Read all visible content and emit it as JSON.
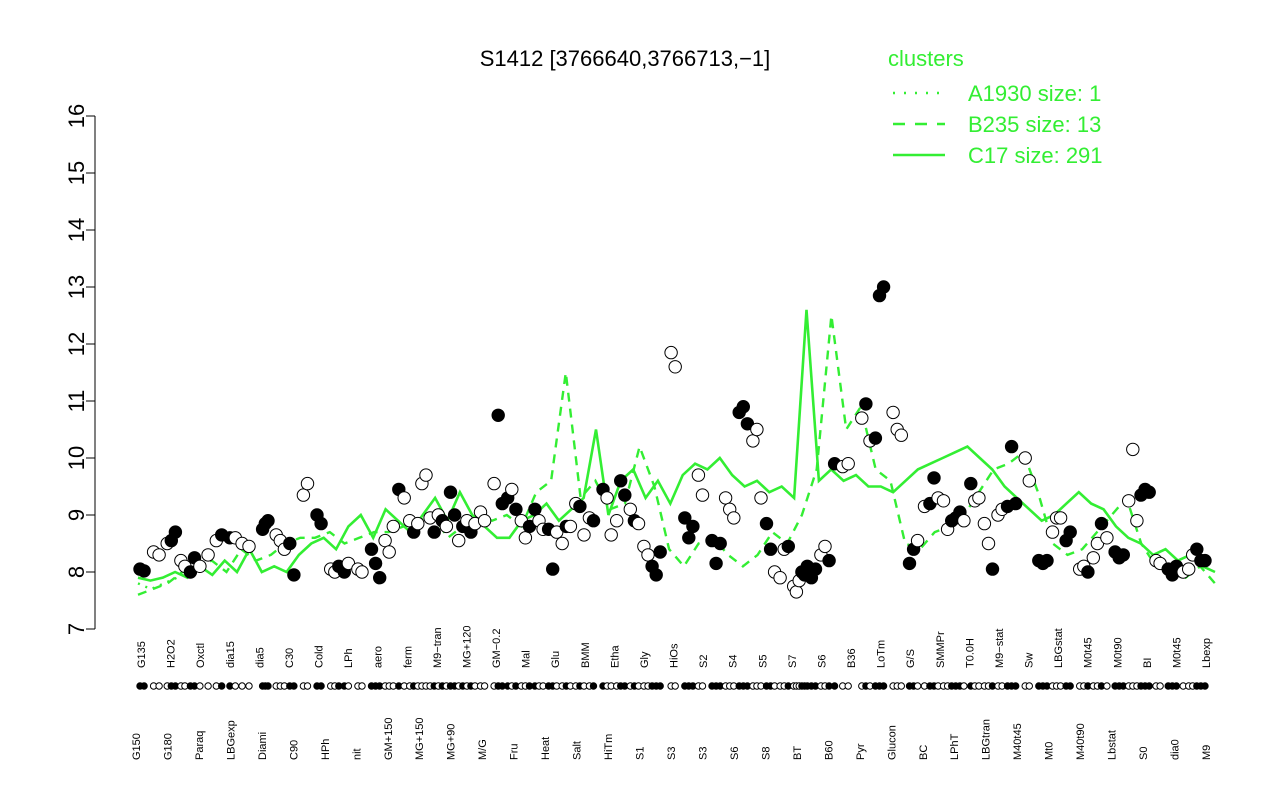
{
  "chart_data": {
    "type": "scatter",
    "title": "S1412 [3766640,3766713,−1]",
    "xlabel": "",
    "ylabel": "",
    "ylim": [
      7,
      16
    ],
    "yticks": [
      7,
      8,
      9,
      10,
      11,
      12,
      13,
      14,
      15,
      16
    ],
    "colors": {
      "series": "#33ee33",
      "points_fill_open": "#ffffff",
      "points_fill_solid": "#000000",
      "axis": "#000000"
    },
    "legend": {
      "title": "clusters",
      "placement": "top-right",
      "entries": [
        {
          "label": "A1930 size: 1",
          "style": "dotted"
        },
        {
          "label": "B235 size: 13",
          "style": "dashed"
        },
        {
          "label": "C17 size: 291",
          "style": "solid"
        }
      ]
    },
    "x_labels_upper": [
      "G135",
      "H2O2",
      "Oxctl",
      "dia15",
      "dia5",
      "C30",
      "Cold",
      "LPh",
      "aero",
      "ferm",
      "M9−tran",
      "MG+120",
      "GM−0.2",
      "Mal",
      "Glu",
      "BMM",
      "Etha",
      "Gly",
      "HiOs",
      "S2",
      "S4",
      "S5",
      "S7",
      "S6",
      "B36",
      "LoTm",
      "G/S",
      "SMMPr",
      "T0.0H",
      "M9−stat",
      "Sw",
      "LBGstat",
      "M0t45",
      "M0t90",
      "BI",
      "M0t45",
      "Lbexp"
    ],
    "x_labels_lower": [
      "G150",
      "G180",
      "Paraq",
      "LBGexp",
      "Diami",
      "C90",
      "HPh",
      "nit",
      "GM+150",
      "MG+150",
      "MG+90",
      "M/G",
      "Fru",
      "Heat",
      "Salt",
      "HiTm",
      "S1",
      "S3",
      "S3",
      "S6",
      "S8",
      "BT",
      "B60",
      "Pyr",
      "Glucon",
      "BC",
      "LPhT",
      "LBGtran",
      "M40t45",
      "Mt0",
      "M40t90",
      "Lbstat",
      "S0",
      "dia0",
      "M9"
    ],
    "series": [
      {
        "name": "A1930 size: 1",
        "style": "dotted",
        "values": [
          7.8,
          7.7,
          7.8,
          7.9,
          8.0
        ]
      },
      {
        "name": "B235 size: 13",
        "style": "dashed",
        "values": [
          7.6,
          7.7,
          7.8,
          8.0,
          8.1,
          8.2,
          8.0,
          8.4,
          8.2,
          8.3,
          8.5,
          8.6,
          8.6,
          8.7,
          8.5,
          8.6,
          8.7,
          8.7,
          8.8,
          8.9,
          9.0,
          8.6,
          8.8,
          9.0,
          8.9,
          9.0,
          8.8,
          9.4,
          9.6,
          11.5,
          9.3,
          9.6,
          9.1,
          9.2,
          10.2,
          9.5,
          8.4,
          8.1,
          8.5,
          8.6,
          8.3,
          8.1,
          8.3,
          8.7,
          8.5,
          9.0,
          9.8,
          12.5,
          10.5,
          10.9,
          9.8,
          9.6,
          8.5,
          8.4,
          8.7,
          8.8,
          9.0,
          9.4,
          9.8,
          9.9,
          10.1,
          9.4,
          8.5,
          8.3,
          8.4,
          8.7,
          9.0,
          9.3,
          8.5,
          8.1,
          8.0,
          7.9,
          8.1,
          7.8
        ]
      },
      {
        "name": "C17 size: 291",
        "style": "solid",
        "values": [
          7.9,
          7.85,
          7.9,
          8.0,
          7.9,
          8.1,
          7.95,
          8.2,
          8.0,
          8.4,
          8.0,
          8.1,
          8.0,
          8.3,
          8.5,
          8.6,
          8.4,
          8.8,
          9.0,
          8.6,
          9.1,
          8.9,
          8.7,
          9.0,
          9.3,
          8.9,
          9.4,
          9.0,
          8.8,
          8.6,
          8.6,
          8.9,
          9.0,
          9.2,
          8.9,
          9.1,
          9.3,
          10.5,
          9.0,
          9.6,
          9.8,
          9.3,
          9.6,
          9.2,
          9.7,
          9.9,
          9.8,
          10.0,
          9.7,
          9.5,
          9.6,
          9.4,
          9.5,
          9.3,
          12.6,
          9.6,
          9.8,
          9.6,
          9.7,
          9.5,
          9.5,
          9.4,
          9.6,
          9.8,
          9.9,
          10.0,
          10.1,
          10.2,
          10.0,
          9.8,
          9.5,
          9.3,
          9.1,
          8.9,
          9.0,
          9.2,
          9.4,
          9.2,
          9.1,
          8.8,
          8.6,
          8.5,
          8.3,
          8.4,
          8.2,
          8.3,
          8.1,
          8.0
        ]
      }
    ],
    "points": [
      {
        "x": 0,
        "y": 8.05,
        "f": 1
      },
      {
        "x": 0.3,
        "y": 8.02,
        "f": 1
      },
      {
        "x": 1,
        "y": 8.35,
        "f": 0
      },
      {
        "x": 1.4,
        "y": 8.3,
        "f": 0
      },
      {
        "x": 2,
        "y": 8.5,
        "f": 0
      },
      {
        "x": 2.3,
        "y": 8.55,
        "f": 1
      },
      {
        "x": 2.6,
        "y": 8.7,
        "f": 1
      },
      {
        "x": 3,
        "y": 8.2,
        "f": 0
      },
      {
        "x": 3.3,
        "y": 8.1,
        "f": 0
      },
      {
        "x": 3.7,
        "y": 8.0,
        "f": 1
      },
      {
        "x": 4,
        "y": 8.25,
        "f": 1
      },
      {
        "x": 4.4,
        "y": 8.1,
        "f": 0
      },
      {
        "x": 5,
        "y": 8.3,
        "f": 0
      },
      {
        "x": 5.6,
        "y": 8.55,
        "f": 0
      },
      {
        "x": 6,
        "y": 8.65,
        "f": 1
      },
      {
        "x": 6.6,
        "y": 8.6,
        "f": 1
      },
      {
        "x": 7,
        "y": 8.6,
        "f": 0
      },
      {
        "x": 7.5,
        "y": 8.5,
        "f": 0
      },
      {
        "x": 8,
        "y": 8.45,
        "f": 0
      },
      {
        "x": 9,
        "y": 8.75,
        "f": 1
      },
      {
        "x": 9.2,
        "y": 8.85,
        "f": 1
      },
      {
        "x": 9.4,
        "y": 8.9,
        "f": 1
      },
      {
        "x": 10,
        "y": 8.65,
        "f": 0
      },
      {
        "x": 10.3,
        "y": 8.55,
        "f": 0
      },
      {
        "x": 10.6,
        "y": 8.4,
        "f": 0
      },
      {
        "x": 11,
        "y": 8.5,
        "f": 1
      },
      {
        "x": 11.3,
        "y": 7.95,
        "f": 1
      },
      {
        "x": 12,
        "y": 9.35,
        "f": 0
      },
      {
        "x": 12.3,
        "y": 9.55,
        "f": 0
      },
      {
        "x": 13,
        "y": 9.0,
        "f": 1
      },
      {
        "x": 13.3,
        "y": 8.85,
        "f": 1
      },
      {
        "x": 14,
        "y": 8.05,
        "f": 0
      },
      {
        "x": 14.3,
        "y": 8.0,
        "f": 0
      },
      {
        "x": 14.6,
        "y": 8.1,
        "f": 1
      },
      {
        "x": 15,
        "y": 8.0,
        "f": 1
      },
      {
        "x": 15.3,
        "y": 8.15,
        "f": 0
      },
      {
        "x": 16,
        "y": 8.05,
        "f": 0
      },
      {
        "x": 16.3,
        "y": 8.0,
        "f": 0
      },
      {
        "x": 17,
        "y": 8.4,
        "f": 1
      },
      {
        "x": 17.3,
        "y": 8.15,
        "f": 1
      },
      {
        "x": 17.6,
        "y": 7.9,
        "f": 1
      },
      {
        "x": 18,
        "y": 8.55,
        "f": 0
      },
      {
        "x": 18.3,
        "y": 8.35,
        "f": 0
      },
      {
        "x": 18.6,
        "y": 8.8,
        "f": 0
      },
      {
        "x": 19,
        "y": 9.45,
        "f": 1
      },
      {
        "x": 19.4,
        "y": 9.3,
        "f": 0
      },
      {
        "x": 19.8,
        "y": 8.9,
        "f": 0
      },
      {
        "x": 20.1,
        "y": 8.7,
        "f": 1
      },
      {
        "x": 20.4,
        "y": 8.85,
        "f": 0
      },
      {
        "x": 20.7,
        "y": 9.55,
        "f": 0
      },
      {
        "x": 21,
        "y": 9.7,
        "f": 0
      },
      {
        "x": 21.3,
        "y": 8.95,
        "f": 0
      },
      {
        "x": 21.6,
        "y": 8.7,
        "f": 1
      },
      {
        "x": 21.9,
        "y": 9.0,
        "f": 0
      },
      {
        "x": 22.2,
        "y": 8.9,
        "f": 1
      },
      {
        "x": 22.5,
        "y": 8.8,
        "f": 0
      },
      {
        "x": 22.8,
        "y": 9.4,
        "f": 1
      },
      {
        "x": 23.1,
        "y": 9.0,
        "f": 1
      },
      {
        "x": 23.4,
        "y": 8.55,
        "f": 0
      },
      {
        "x": 23.7,
        "y": 8.8,
        "f": 1
      },
      {
        "x": 24,
        "y": 8.9,
        "f": 0
      },
      {
        "x": 24.3,
        "y": 8.7,
        "f": 1
      },
      {
        "x": 24.6,
        "y": 8.85,
        "f": 0
      },
      {
        "x": 25,
        "y": 9.05,
        "f": 0
      },
      {
        "x": 25.3,
        "y": 8.9,
        "f": 0
      },
      {
        "x": 26,
        "y": 9.55,
        "f": 0
      },
      {
        "x": 26.3,
        "y": 10.75,
        "f": 1
      },
      {
        "x": 26.6,
        "y": 9.2,
        "f": 1
      },
      {
        "x": 27,
        "y": 9.3,
        "f": 1
      },
      {
        "x": 27.3,
        "y": 9.45,
        "f": 0
      },
      {
        "x": 27.6,
        "y": 9.1,
        "f": 1
      },
      {
        "x": 28,
        "y": 8.9,
        "f": 0
      },
      {
        "x": 28.3,
        "y": 8.6,
        "f": 0
      },
      {
        "x": 28.6,
        "y": 8.8,
        "f": 1
      },
      {
        "x": 29,
        "y": 9.1,
        "f": 1
      },
      {
        "x": 29.3,
        "y": 8.9,
        "f": 0
      },
      {
        "x": 29.6,
        "y": 8.75,
        "f": 0
      },
      {
        "x": 30,
        "y": 8.75,
        "f": 1
      },
      {
        "x": 30.3,
        "y": 8.05,
        "f": 1
      },
      {
        "x": 30.6,
        "y": 8.7,
        "f": 0
      },
      {
        "x": 31,
        "y": 8.5,
        "f": 0
      },
      {
        "x": 31.3,
        "y": 8.8,
        "f": 1
      },
      {
        "x": 31.6,
        "y": 8.8,
        "f": 0
      },
      {
        "x": 32,
        "y": 9.2,
        "f": 0
      },
      {
        "x": 32.3,
        "y": 9.15,
        "f": 1
      },
      {
        "x": 32.6,
        "y": 8.65,
        "f": 0
      },
      {
        "x": 33,
        "y": 8.95,
        "f": 0
      },
      {
        "x": 33.3,
        "y": 8.9,
        "f": 1
      },
      {
        "x": 34,
        "y": 9.45,
        "f": 1
      },
      {
        "x": 34.3,
        "y": 9.3,
        "f": 0
      },
      {
        "x": 34.6,
        "y": 8.65,
        "f": 0
      },
      {
        "x": 35,
        "y": 8.9,
        "f": 0
      },
      {
        "x": 35.3,
        "y": 9.6,
        "f": 1
      },
      {
        "x": 35.6,
        "y": 9.35,
        "f": 1
      },
      {
        "x": 36,
        "y": 9.1,
        "f": 0
      },
      {
        "x": 36.3,
        "y": 8.9,
        "f": 1
      },
      {
        "x": 36.6,
        "y": 8.85,
        "f": 0
      },
      {
        "x": 37,
        "y": 8.45,
        "f": 0
      },
      {
        "x": 37.3,
        "y": 8.3,
        "f": 0
      },
      {
        "x": 37.6,
        "y": 8.1,
        "f": 1
      },
      {
        "x": 37.9,
        "y": 7.95,
        "f": 1
      },
      {
        "x": 38.2,
        "y": 8.35,
        "f": 1
      },
      {
        "x": 39,
        "y": 11.85,
        "f": 0
      },
      {
        "x": 39.3,
        "y": 11.6,
        "f": 0
      },
      {
        "x": 40,
        "y": 8.95,
        "f": 1
      },
      {
        "x": 40.3,
        "y": 8.6,
        "f": 1
      },
      {
        "x": 40.6,
        "y": 8.8,
        "f": 1
      },
      {
        "x": 41,
        "y": 9.7,
        "f": 0
      },
      {
        "x": 41.3,
        "y": 9.35,
        "f": 0
      },
      {
        "x": 42,
        "y": 8.55,
        "f": 1
      },
      {
        "x": 42.3,
        "y": 8.15,
        "f": 1
      },
      {
        "x": 42.6,
        "y": 8.5,
        "f": 1
      },
      {
        "x": 43,
        "y": 9.3,
        "f": 0
      },
      {
        "x": 43.3,
        "y": 9.1,
        "f": 0
      },
      {
        "x": 43.6,
        "y": 8.95,
        "f": 0
      },
      {
        "x": 44,
        "y": 10.8,
        "f": 1
      },
      {
        "x": 44.3,
        "y": 10.9,
        "f": 1
      },
      {
        "x": 44.6,
        "y": 10.6,
        "f": 1
      },
      {
        "x": 45,
        "y": 10.3,
        "f": 0
      },
      {
        "x": 45.3,
        "y": 10.5,
        "f": 0
      },
      {
        "x": 45.6,
        "y": 9.3,
        "f": 0
      },
      {
        "x": 46,
        "y": 8.85,
        "f": 1
      },
      {
        "x": 46.3,
        "y": 8.4,
        "f": 1
      },
      {
        "x": 46.6,
        "y": 8.0,
        "f": 0
      },
      {
        "x": 47,
        "y": 7.9,
        "f": 0
      },
      {
        "x": 47.3,
        "y": 8.4,
        "f": 0
      },
      {
        "x": 47.6,
        "y": 8.45,
        "f": 1
      },
      {
        "x": 48,
        "y": 7.75,
        "f": 0
      },
      {
        "x": 48.2,
        "y": 7.65,
        "f": 0
      },
      {
        "x": 48.4,
        "y": 7.85,
        "f": 0
      },
      {
        "x": 48.6,
        "y": 8.0,
        "f": 1
      },
      {
        "x": 48.8,
        "y": 7.95,
        "f": 1
      },
      {
        "x": 49,
        "y": 8.1,
        "f": 1
      },
      {
        "x": 49.3,
        "y": 7.9,
        "f": 1
      },
      {
        "x": 49.6,
        "y": 8.05,
        "f": 1
      },
      {
        "x": 50,
        "y": 8.3,
        "f": 0
      },
      {
        "x": 50.3,
        "y": 8.45,
        "f": 0
      },
      {
        "x": 50.6,
        "y": 8.2,
        "f": 1
      },
      {
        "x": 51,
        "y": 9.9,
        "f": 1
      },
      {
        "x": 51.6,
        "y": 9.85,
        "f": 0
      },
      {
        "x": 52,
        "y": 9.9,
        "f": 0
      },
      {
        "x": 53,
        "y": 10.7,
        "f": 0
      },
      {
        "x": 53.3,
        "y": 10.95,
        "f": 1
      },
      {
        "x": 53.6,
        "y": 10.3,
        "f": 0
      },
      {
        "x": 54,
        "y": 10.35,
        "f": 1
      },
      {
        "x": 54.6,
        "y": 13.0,
        "f": 1
      },
      {
        "x": 54.3,
        "y": 12.85,
        "f": 1
      },
      {
        "x": 55.3,
        "y": 10.8,
        "f": 0
      },
      {
        "x": 55.6,
        "y": 10.5,
        "f": 0
      },
      {
        "x": 55.9,
        "y": 10.4,
        "f": 0
      },
      {
        "x": 56.5,
        "y": 8.15,
        "f": 1
      },
      {
        "x": 56.8,
        "y": 8.4,
        "f": 1
      },
      {
        "x": 57.1,
        "y": 8.55,
        "f": 0
      },
      {
        "x": 57.6,
        "y": 9.15,
        "f": 0
      },
      {
        "x": 58,
        "y": 9.2,
        "f": 1
      },
      {
        "x": 58.3,
        "y": 9.65,
        "f": 1
      },
      {
        "x": 58.6,
        "y": 9.3,
        "f": 0
      },
      {
        "x": 59,
        "y": 9.25,
        "f": 0
      },
      {
        "x": 59.3,
        "y": 8.75,
        "f": 0
      },
      {
        "x": 59.6,
        "y": 8.9,
        "f": 1
      },
      {
        "x": 59.9,
        "y": 8.95,
        "f": 1
      },
      {
        "x": 60.2,
        "y": 9.05,
        "f": 1
      },
      {
        "x": 60.5,
        "y": 8.9,
        "f": 0
      },
      {
        "x": 61,
        "y": 9.55,
        "f": 1
      },
      {
        "x": 61.3,
        "y": 9.25,
        "f": 0
      },
      {
        "x": 61.6,
        "y": 9.3,
        "f": 0
      },
      {
        "x": 62,
        "y": 8.85,
        "f": 0
      },
      {
        "x": 62.3,
        "y": 8.5,
        "f": 0
      },
      {
        "x": 62.6,
        "y": 8.05,
        "f": 1
      },
      {
        "x": 63,
        "y": 9.0,
        "f": 0
      },
      {
        "x": 63.3,
        "y": 9.1,
        "f": 0
      },
      {
        "x": 64,
        "y": 10.2,
        "f": 1
      },
      {
        "x": 64.3,
        "y": 9.2,
        "f": 1
      },
      {
        "x": 63.7,
        "y": 9.15,
        "f": 1
      },
      {
        "x": 65,
        "y": 10.0,
        "f": 0
      },
      {
        "x": 65.3,
        "y": 9.6,
        "f": 0
      },
      {
        "x": 66,
        "y": 8.2,
        "f": 1
      },
      {
        "x": 66.3,
        "y": 8.15,
        "f": 1
      },
      {
        "x": 66.6,
        "y": 8.2,
        "f": 1
      },
      {
        "x": 67,
        "y": 8.7,
        "f": 0
      },
      {
        "x": 67.3,
        "y": 8.95,
        "f": 0
      },
      {
        "x": 67.6,
        "y": 8.95,
        "f": 0
      },
      {
        "x": 68,
        "y": 8.55,
        "f": 1
      },
      {
        "x": 68.3,
        "y": 8.7,
        "f": 1
      },
      {
        "x": 69,
        "y": 8.05,
        "f": 0
      },
      {
        "x": 69.3,
        "y": 8.1,
        "f": 0
      },
      {
        "x": 69.6,
        "y": 8.0,
        "f": 1
      },
      {
        "x": 70,
        "y": 8.25,
        "f": 0
      },
      {
        "x": 70.3,
        "y": 8.5,
        "f": 0
      },
      {
        "x": 70.6,
        "y": 8.85,
        "f": 1
      },
      {
        "x": 71,
        "y": 8.6,
        "f": 0
      },
      {
        "x": 71.6,
        "y": 8.35,
        "f": 1
      },
      {
        "x": 71.9,
        "y": 8.25,
        "f": 1
      },
      {
        "x": 72.2,
        "y": 8.3,
        "f": 1
      },
      {
        "x": 72.6,
        "y": 9.25,
        "f": 0
      },
      {
        "x": 72.9,
        "y": 10.15,
        "f": 0
      },
      {
        "x": 73.2,
        "y": 8.9,
        "f": 0
      },
      {
        "x": 73.5,
        "y": 9.35,
        "f": 1
      },
      {
        "x": 73.8,
        "y": 9.45,
        "f": 1
      },
      {
        "x": 74.1,
        "y": 9.4,
        "f": 1
      },
      {
        "x": 74.6,
        "y": 8.2,
        "f": 0
      },
      {
        "x": 74.9,
        "y": 8.15,
        "f": 0
      },
      {
        "x": 75.5,
        "y": 8.05,
        "f": 1
      },
      {
        "x": 75.8,
        "y": 7.95,
        "f": 1
      },
      {
        "x": 76.1,
        "y": 8.1,
        "f": 1
      },
      {
        "x": 76.6,
        "y": 8.0,
        "f": 0
      },
      {
        "x": 77,
        "y": 8.05,
        "f": 0
      },
      {
        "x": 77.3,
        "y": 8.3,
        "f": 0
      },
      {
        "x": 77.6,
        "y": 8.4,
        "f": 1
      },
      {
        "x": 77.9,
        "y": 8.2,
        "f": 1
      },
      {
        "x": 78.2,
        "y": 8.2,
        "f": 1
      }
    ]
  }
}
